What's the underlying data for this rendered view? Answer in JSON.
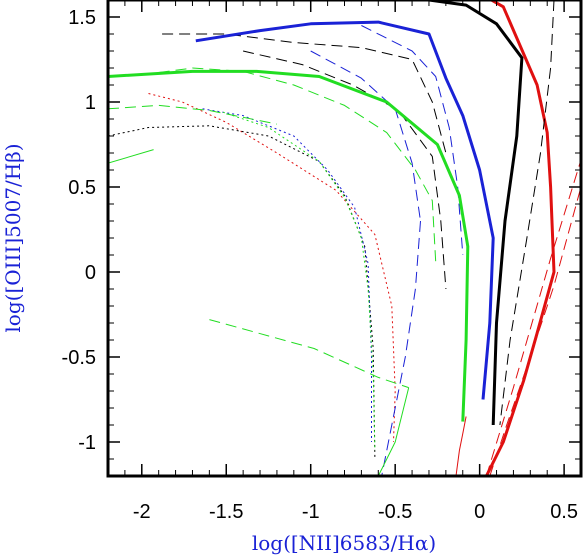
{
  "chart_data": {
    "type": "line",
    "xlabel": "log([NII]6583/Hα)",
    "ylabel": "log([OIII]5007/Hβ)",
    "xlim": [
      -2.2,
      0.6
    ],
    "ylim": [
      -1.2,
      1.6
    ],
    "x_ticks": [
      -2,
      -1.5,
      -1,
      -0.5,
      0,
      0.5
    ],
    "x_tick_labels": [
      "-2",
      "-1.5",
      "-1",
      "-0.5",
      "0",
      "0.5"
    ],
    "y_ticks": [
      -1,
      -0.5,
      0,
      0.5,
      1,
      1.5
    ],
    "y_tick_labels": [
      "-1",
      "-0.5",
      "0",
      "0.5",
      "1",
      "1.5"
    ],
    "grid": false,
    "colors": {
      "red": "#e01010",
      "black": "#000000",
      "blue": "#1a22d6",
      "green": "#22dd22",
      "axis_label": "#1a22d6"
    },
    "series": [
      {
        "color": "red",
        "style": "solid",
        "width": 3,
        "x": [
          -0.1,
          0.0,
          0.14,
          0.34,
          0.4,
          0.42,
          0.44,
          0.34,
          0.26,
          0.14,
          0.04
        ],
        "y": [
          1.7,
          1.64,
          1.56,
          1.1,
          0.82,
          0.5,
          0.0,
          -0.36,
          -0.64,
          -1.0,
          -1.2
        ]
      },
      {
        "color": "red",
        "style": "dashed",
        "width": 1,
        "x": [
          0.06,
          0.16,
          0.3,
          0.44,
          0.6
        ],
        "y": [
          -1.2,
          -0.9,
          -0.5,
          -0.08,
          0.5
        ]
      },
      {
        "color": "red",
        "style": "dashed",
        "width": 1,
        "x": [
          0.04,
          0.2,
          0.42,
          0.6
        ],
        "y": [
          -1.2,
          -0.68,
          0.08,
          0.66
        ]
      },
      {
        "color": "red",
        "style": "solid",
        "width": 1,
        "x": [
          -0.14,
          -0.12,
          -0.1,
          -0.08
        ],
        "y": [
          -1.2,
          -1.05,
          -0.95,
          -0.85
        ]
      },
      {
        "color": "red",
        "style": "dotted",
        "width": 1,
        "x": [
          -1.96,
          -1.76,
          -1.5,
          -1.2,
          -0.85,
          -0.62,
          -0.52,
          -0.5,
          -0.51
        ],
        "y": [
          1.05,
          1.0,
          0.88,
          0.7,
          0.48,
          0.22,
          -0.2,
          -0.7,
          -1.0
        ]
      },
      {
        "color": "black",
        "style": "solid",
        "width": 3,
        "x": [
          -0.72,
          -0.3,
          -0.08,
          0.1,
          0.25,
          0.22,
          0.15,
          0.1,
          0.08
        ],
        "y": [
          1.62,
          1.6,
          1.57,
          1.46,
          1.26,
          0.8,
          0.3,
          -0.3,
          -0.9
        ]
      },
      {
        "color": "black",
        "style": "dashed",
        "width": 1,
        "x": [
          0.44,
          0.42,
          0.36,
          0.28,
          0.18,
          0.12
        ],
        "y": [
          1.6,
          1.2,
          0.7,
          0.2,
          -0.4,
          -0.9
        ]
      },
      {
        "color": "black",
        "style": "dashed",
        "width": 1,
        "x": [
          -1.88,
          -1.5,
          -1.1,
          -0.7,
          -0.4,
          -0.28,
          -0.2
        ],
        "y": [
          1.4,
          1.4,
          1.35,
          1.32,
          1.25,
          1.0,
          0.7
        ]
      },
      {
        "color": "black",
        "style": "dashed",
        "width": 1,
        "x": [
          -1.4,
          -1.05,
          -0.75,
          -0.48,
          -0.28,
          -0.23,
          -0.2
        ],
        "y": [
          1.3,
          1.22,
          1.1,
          0.95,
          0.68,
          0.3,
          -0.1
        ]
      },
      {
        "color": "black",
        "style": "dotted",
        "width": 1,
        "x": [
          -2.2,
          -1.96,
          -1.6,
          -1.25,
          -0.95,
          -0.8,
          -0.68,
          -0.63,
          -0.62
        ],
        "y": [
          0.8,
          0.85,
          0.86,
          0.8,
          0.65,
          0.45,
          0.15,
          -0.45,
          -1.1
        ]
      },
      {
        "color": "blue",
        "style": "solid",
        "width": 3,
        "x": [
          -1.68,
          -1.3,
          -1.0,
          -0.6,
          -0.3,
          -0.2,
          -0.1,
          0.0,
          0.08,
          0.06,
          0.02
        ],
        "y": [
          1.36,
          1.42,
          1.46,
          1.47,
          1.4,
          1.14,
          0.92,
          0.6,
          0.2,
          -0.3,
          -0.75
        ]
      },
      {
        "color": "blue",
        "style": "dashed",
        "width": 1,
        "x": [
          -0.7,
          -0.4,
          -0.26,
          -0.18,
          -0.13,
          -0.1
        ],
        "y": [
          1.45,
          1.3,
          1.15,
          0.85,
          0.5,
          0.1
        ]
      },
      {
        "color": "blue",
        "style": "dashed",
        "width": 1,
        "x": [
          -1.0,
          -0.7,
          -0.5,
          -0.4,
          -0.35
        ],
        "y": [
          1.3,
          1.14,
          0.96,
          0.64,
          0.3
        ]
      },
      {
        "color": "blue",
        "style": "dashed",
        "width": 1,
        "x": [
          -0.35,
          -0.38,
          -0.44,
          -0.52,
          -0.58
        ],
        "y": [
          0.3,
          -0.1,
          -0.5,
          -0.9,
          -1.2
        ]
      },
      {
        "color": "blue",
        "style": "dotted",
        "width": 1,
        "x": [
          -1.64,
          -1.4,
          -1.1,
          -0.9,
          -0.74,
          -0.66,
          -0.64,
          -0.64
        ],
        "y": [
          0.96,
          0.92,
          0.8,
          0.6,
          0.38,
          0.05,
          -0.5,
          -1.0
        ]
      },
      {
        "color": "green",
        "style": "solid",
        "width": 3,
        "x": [
          -2.2,
          -1.7,
          -1.32,
          -0.95,
          -0.55,
          -0.25,
          -0.12,
          -0.07,
          -0.08,
          -0.1
        ],
        "y": [
          1.15,
          1.18,
          1.18,
          1.15,
          1.0,
          0.75,
          0.45,
          0.15,
          -0.4,
          -0.88
        ]
      },
      {
        "color": "green",
        "style": "dashed",
        "width": 1,
        "x": [
          -2.0,
          -1.7,
          -1.4,
          -1.1,
          -0.8,
          -0.55,
          -0.38,
          -0.28,
          -0.26
        ],
        "y": [
          1.16,
          1.2,
          1.18,
          1.1,
          0.98,
          0.82,
          0.6,
          0.42,
          0.06
        ]
      },
      {
        "color": "green",
        "style": "dashed",
        "width": 1,
        "x": [
          -2.2,
          -1.9,
          -1.6,
          -1.2
        ],
        "y": [
          0.96,
          0.98,
          0.95,
          0.87
        ]
      },
      {
        "color": "green",
        "style": "solid",
        "width": 1,
        "x": [
          -2.2,
          -1.93
        ],
        "y": [
          0.64,
          0.72
        ]
      },
      {
        "color": "green",
        "style": "dashed",
        "width": 1,
        "x": [
          -1.6,
          -0.98,
          -0.6,
          -0.42
        ],
        "y": [
          -0.28,
          -0.45,
          -0.62,
          -0.68
        ]
      },
      {
        "color": "green",
        "style": "solid",
        "width": 1,
        "x": [
          -0.42,
          -0.5,
          -0.6
        ],
        "y": [
          -0.68,
          -1.0,
          -1.2
        ]
      },
      {
        "color": "green",
        "style": "dotted",
        "width": 1,
        "x": [
          -1.52,
          -1.25,
          -0.95,
          -0.8,
          -0.7,
          -0.66,
          -0.63,
          -0.62
        ],
        "y": [
          0.94,
          0.85,
          0.65,
          0.44,
          0.2,
          -0.1,
          -0.6,
          -1.05
        ]
      }
    ]
  }
}
